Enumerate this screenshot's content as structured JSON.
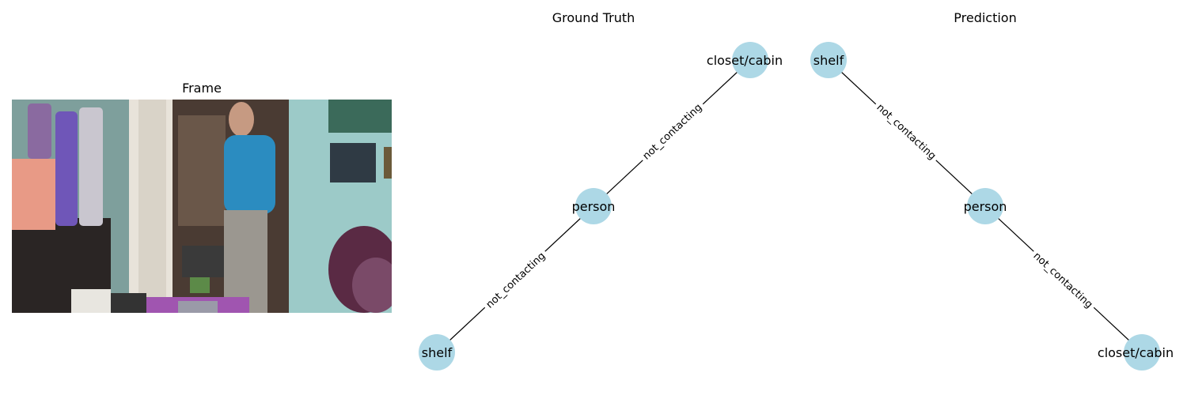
{
  "panels": {
    "frame_title": "Frame",
    "gt_title": "Ground Truth",
    "pred_title": "Prediction"
  },
  "colors": {
    "node_fill": "#add8e6",
    "edge": "#000000"
  },
  "ground_truth": {
    "nodes": [
      "closet/cabin",
      "person",
      "shelf"
    ],
    "edges": [
      {
        "from": "person",
        "to": "closet/cabin",
        "label": "not_contacting"
      },
      {
        "from": "person",
        "to": "shelf",
        "label": "not_contacting"
      }
    ]
  },
  "prediction": {
    "nodes": [
      "shelf",
      "person",
      "closet/cabin"
    ],
    "edges": [
      {
        "from": "person",
        "to": "shelf",
        "label": "not_contacting"
      },
      {
        "from": "person",
        "to": "closet/cabin",
        "label": "not_contacting"
      }
    ]
  }
}
